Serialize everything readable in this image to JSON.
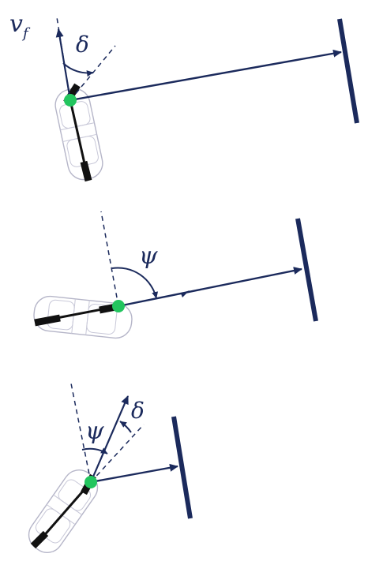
{
  "colors": {
    "navy": "#1b2a5c",
    "contact_point": "#22c55e",
    "car_outline": "#b5b5c8",
    "wheel": "#111111"
  },
  "panels": [
    {
      "name": "steering-angle",
      "labels": {
        "velocity": "v",
        "velocity_sub": "f",
        "steer": "δ"
      }
    },
    {
      "name": "heading-angle",
      "labels": {
        "heading": "ψ"
      }
    },
    {
      "name": "heading-and-steering",
      "labels": {
        "heading": "ψ",
        "steer": "δ"
      }
    }
  ]
}
